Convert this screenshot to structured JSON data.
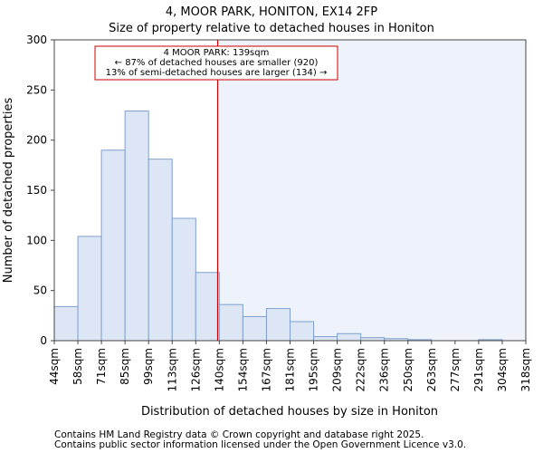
{
  "title_line1": "4, MOOR PARK, HONITON, EX14 2FP",
  "title_line2": "Size of property relative to detached houses in Honiton",
  "footer_line1": "Contains HM Land Registry data © Crown copyright and database right 2025.",
  "footer_line2": "Contains public sector information licensed under the Open Government Licence v3.0.",
  "chart_data": {
    "type": "bar",
    "title": "Size of property relative to detached houses in Honiton",
    "xlabel": "Distribution of detached houses by size in Honiton",
    "ylabel": "Number of detached properties",
    "ylim": [
      0,
      300
    ],
    "yticks": [
      0,
      50,
      100,
      150,
      200,
      250,
      300
    ],
    "bin_edges": [
      44,
      58,
      71,
      85,
      99,
      113,
      126,
      140,
      154,
      167,
      181,
      195,
      209,
      222,
      236,
      250,
      263,
      277,
      291,
      304,
      318
    ],
    "tick_labels": [
      "44sqm",
      "58sqm",
      "71sqm",
      "85sqm",
      "99sqm",
      "113sqm",
      "126sqm",
      "140sqm",
      "154sqm",
      "167sqm",
      "181sqm",
      "195sqm",
      "209sqm",
      "222sqm",
      "236sqm",
      "250sqm",
      "263sqm",
      "277sqm",
      "291sqm",
      "304sqm",
      "318sqm"
    ],
    "values": [
      34,
      104,
      190,
      229,
      181,
      122,
      68,
      36,
      24,
      32,
      19,
      4,
      7,
      3,
      2,
      1,
      0,
      0,
      1,
      0
    ],
    "marker_value": 139,
    "annotation": {
      "line1": "4 MOOR PARK: 139sqm",
      "line2": "← 87% of detached houses are smaller (920)",
      "line3": "13% of semi-detached houses are larger (134) →"
    },
    "colors": {
      "bar_fill": "#dde6f4",
      "bar_stroke": "#7f9fce",
      "marker": "#cc0000",
      "highlight_region": "#eef2fa",
      "axis": "#444444"
    },
    "grid": false
  }
}
